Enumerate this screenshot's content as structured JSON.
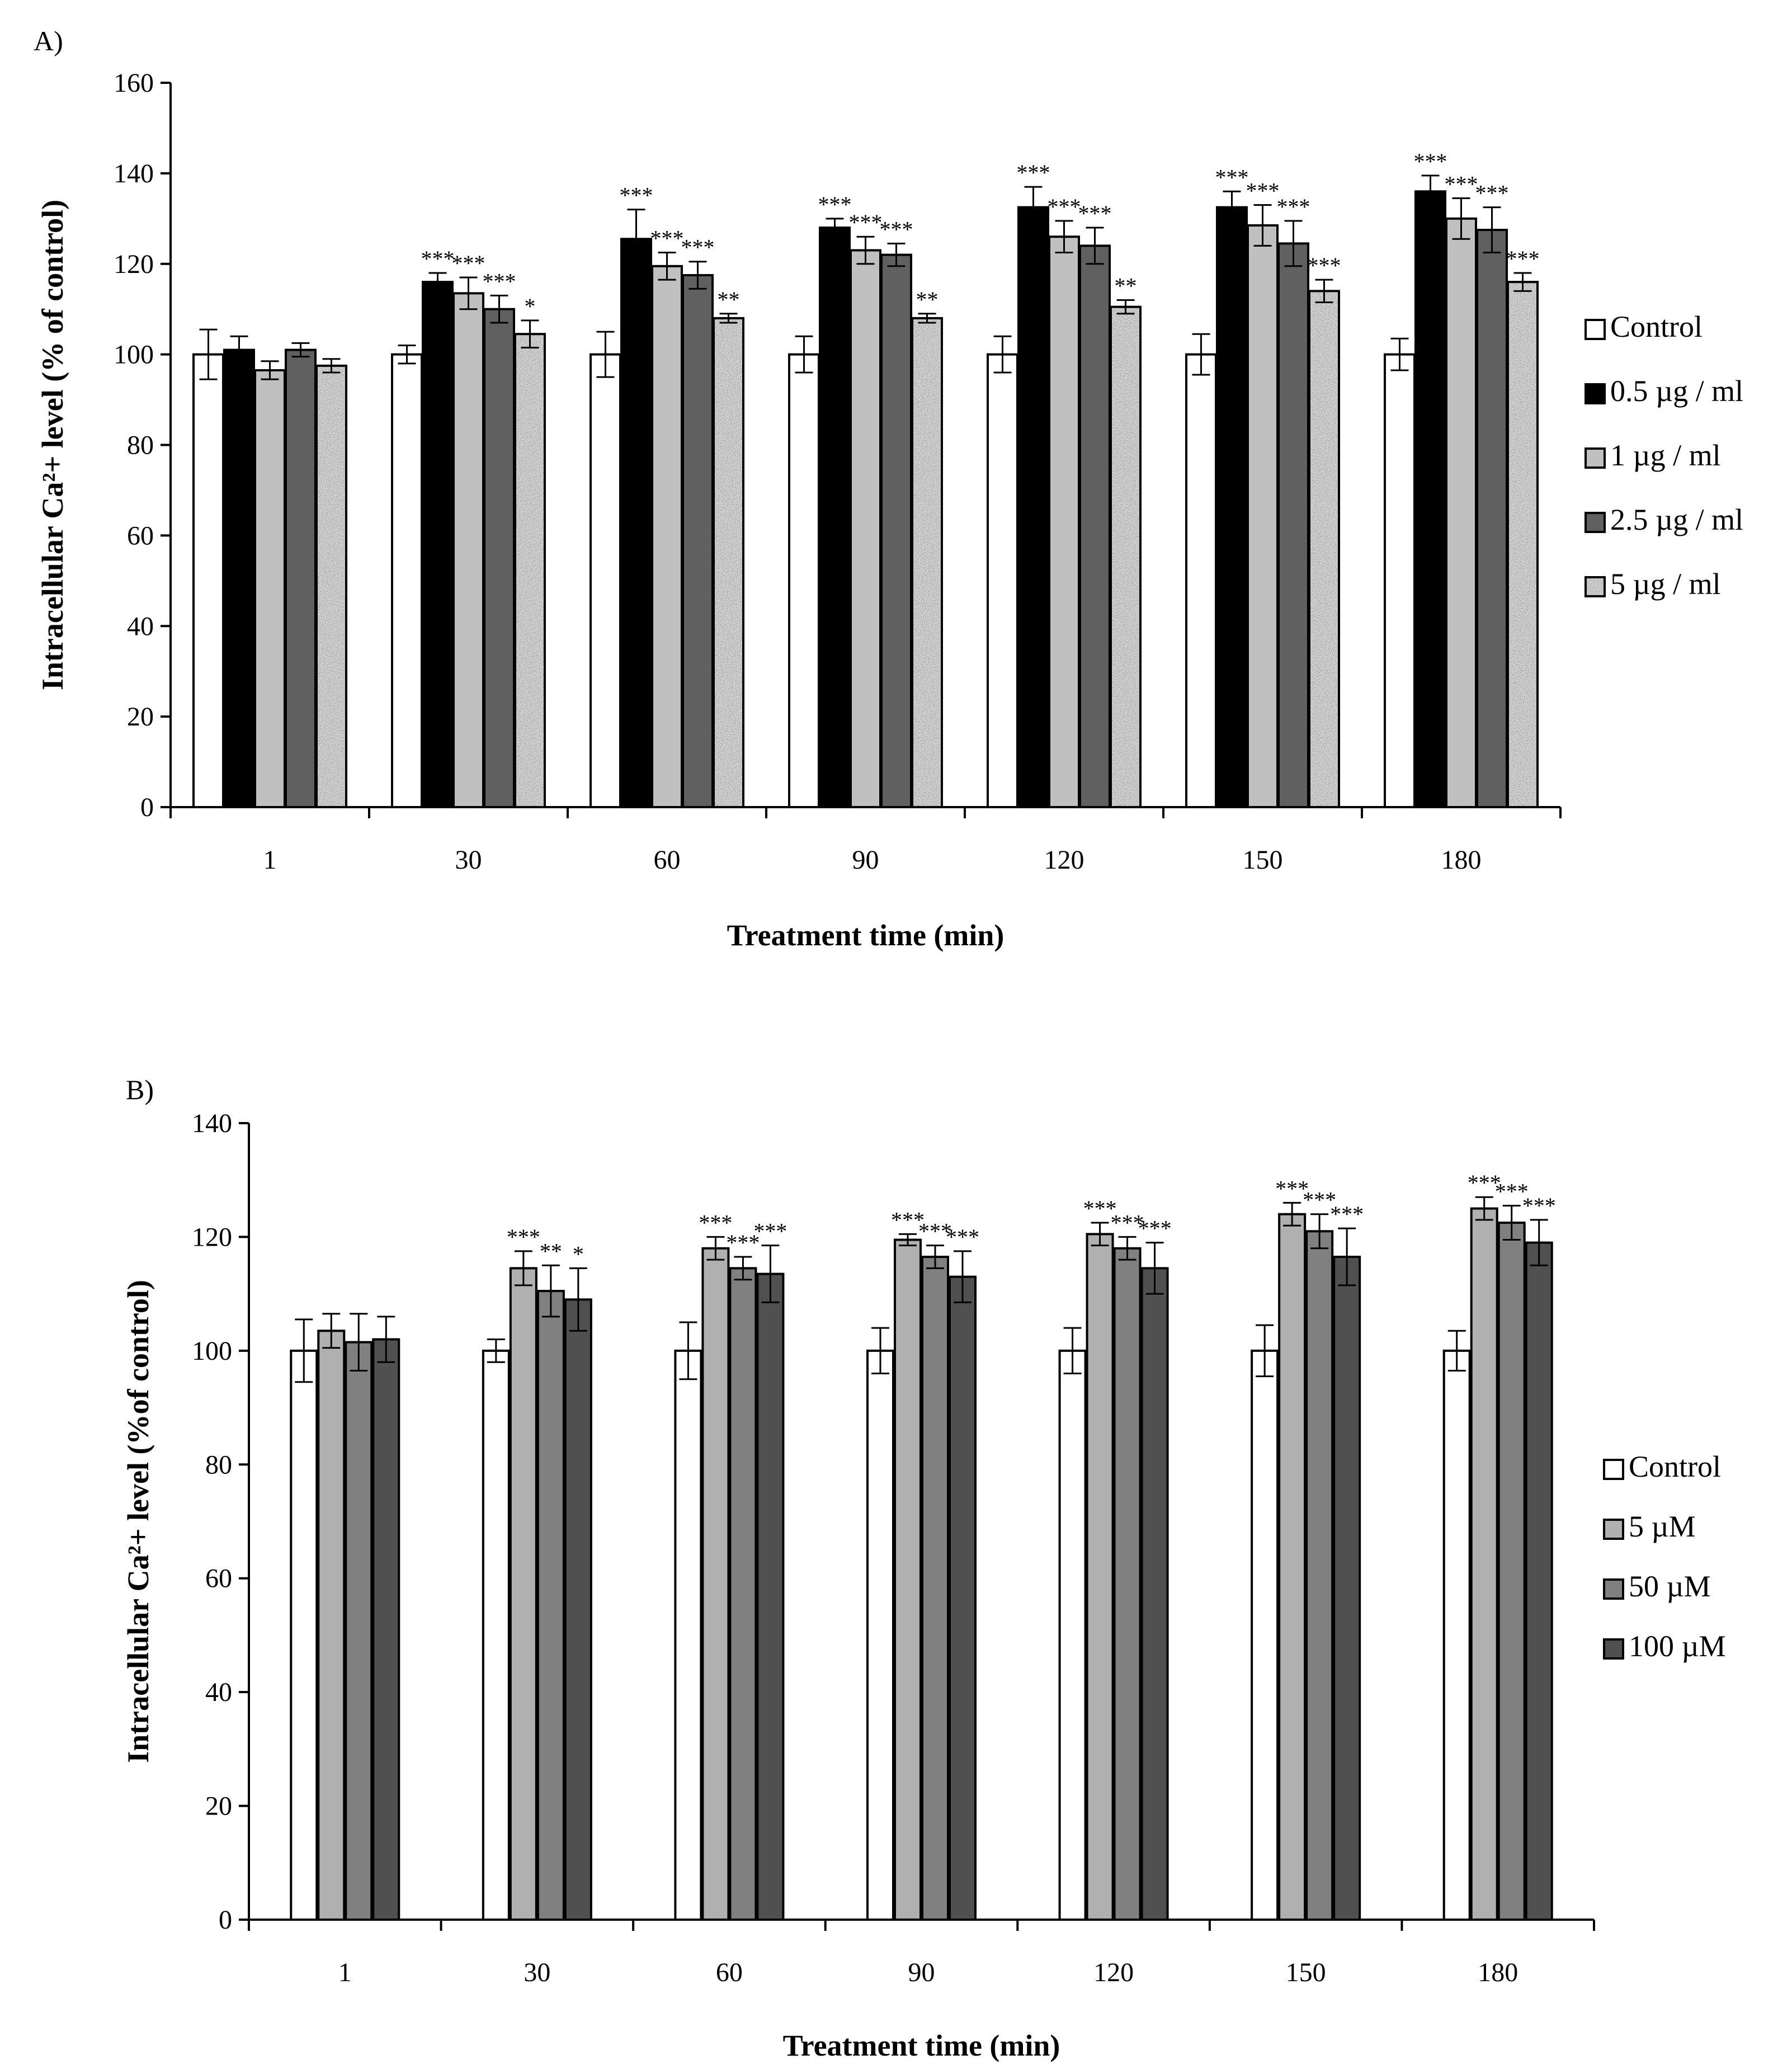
{
  "chart_data": [
    {
      "type": "bar",
      "panel_label": "A)",
      "categories": [
        "1",
        "30",
        "60",
        "90",
        "120",
        "150",
        "180"
      ],
      "xlabel": "Treatment time (min)",
      "ylabel": "Intracellular Ca²+ level (% of control)",
      "ylim": [
        0,
        160
      ],
      "yticks": [
        0,
        20,
        40,
        60,
        80,
        100,
        120,
        140,
        160
      ],
      "legend_position": "right",
      "grid": false,
      "series": [
        {
          "name": "Control",
          "color": "#ffffff",
          "pattern": "none",
          "values": [
            100,
            100,
            100,
            100,
            100,
            100,
            100
          ],
          "errors": [
            5.5,
            2,
            5,
            4,
            4,
            4.5,
            3.5
          ],
          "sig": [
            "",
            "",
            "",
            "",
            "",
            "",
            ""
          ]
        },
        {
          "name": "0.5 µg / ml",
          "color": "#000000",
          "pattern": "none",
          "values": [
            101,
            116,
            125.5,
            128,
            132.5,
            132.5,
            136
          ],
          "errors": [
            3,
            2,
            6.5,
            2,
            4.5,
            3.5,
            3.5
          ],
          "sig": [
            "",
            "***",
            "***",
            "***",
            "***",
            "***",
            "***"
          ]
        },
        {
          "name": "1 µg / ml",
          "color": "#c0c0c0",
          "pattern": "none",
          "values": [
            96.5,
            113.5,
            119.5,
            123,
            126,
            128.5,
            130
          ],
          "errors": [
            2,
            3.5,
            3,
            3,
            3.5,
            4.5,
            4.5
          ],
          "sig": [
            "",
            "***",
            "***",
            "***",
            "***",
            "***",
            "***"
          ]
        },
        {
          "name": "2.5 µg / ml",
          "color": "#606060",
          "pattern": "none",
          "values": [
            101,
            110,
            117.5,
            122,
            124,
            124.5,
            127.5
          ],
          "errors": [
            1.5,
            3,
            3,
            2.5,
            4,
            5,
            5
          ],
          "sig": [
            "",
            "***",
            "***",
            "***",
            "***",
            "***",
            "***"
          ]
        },
        {
          "name": "5 µg / ml",
          "color": "#cfcfcf",
          "pattern": "speckle",
          "values": [
            97.5,
            104.5,
            108,
            108,
            110.5,
            114,
            116
          ],
          "errors": [
            1.5,
            3,
            1,
            1,
            1.5,
            2.5,
            2
          ],
          "sig": [
            "",
            "*",
            "**",
            "**",
            "**",
            "***",
            "***"
          ]
        }
      ]
    },
    {
      "type": "bar",
      "panel_label": "B)",
      "categories": [
        "1",
        "30",
        "60",
        "90",
        "120",
        "150",
        "180"
      ],
      "xlabel": "Treatment time (min)",
      "ylabel": "Intracellular Ca²+ level (%of control)",
      "ylim": [
        0,
        140
      ],
      "yticks": [
        0,
        20,
        40,
        60,
        80,
        100,
        120,
        140
      ],
      "legend_position": "right",
      "grid": false,
      "series": [
        {
          "name": "Control",
          "color": "#ffffff",
          "values": [
            100,
            100,
            100,
            100,
            100,
            100,
            100
          ],
          "errors": [
            5.5,
            2,
            5,
            4,
            4,
            4.5,
            3.5
          ],
          "sig": [
            "",
            "",
            "",
            "",
            "",
            "",
            ""
          ]
        },
        {
          "name": "5 µM",
          "color": "#b0b0b0",
          "values": [
            103.5,
            114.5,
            118,
            119.5,
            120.5,
            124,
            125
          ],
          "errors": [
            3,
            3,
            2,
            1,
            2,
            2,
            2
          ],
          "sig": [
            "",
            "***",
            "***",
            "***",
            "***",
            "***",
            "***"
          ]
        },
        {
          "name": "50 µM",
          "color": "#808080",
          "values": [
            101.5,
            110.5,
            114.5,
            116.5,
            118,
            121,
            122.5
          ],
          "errors": [
            5,
            4.5,
            2,
            2,
            2,
            3,
            3
          ],
          "sig": [
            "",
            "**",
            "***",
            "***",
            "***",
            "***",
            "***"
          ]
        },
        {
          "name": "100 µM",
          "color": "#505050",
          "values": [
            102,
            109,
            113.5,
            113,
            114.5,
            116.5,
            119
          ],
          "errors": [
            4,
            5.5,
            5,
            4.5,
            4.5,
            5,
            4
          ],
          "sig": [
            "",
            "*",
            "***",
            "***",
            "***",
            "***",
            "***"
          ]
        }
      ]
    }
  ]
}
